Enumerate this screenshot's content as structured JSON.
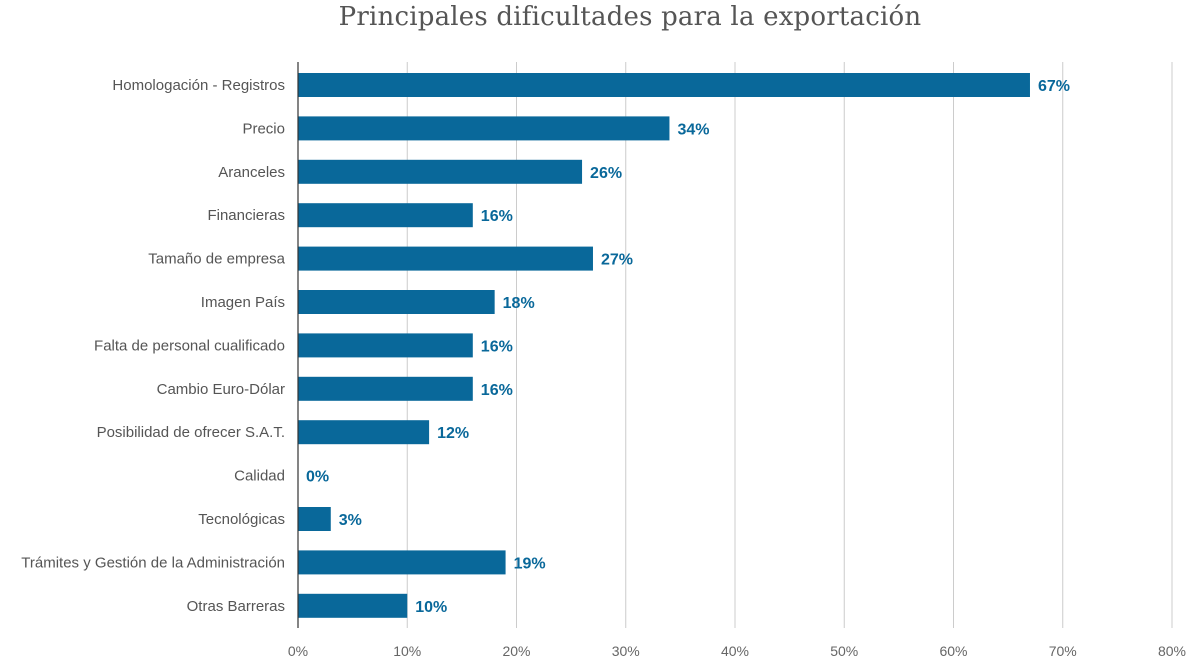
{
  "chart_data": {
    "type": "bar",
    "orientation": "horizontal",
    "title": "Principales dificultades para la exportación",
    "categories": [
      "Homologación - Registros",
      "Precio",
      "Aranceles",
      "Financieras",
      "Tamaño de empresa",
      "Imagen País",
      "Falta de personal cualificado",
      "Cambio Euro-Dólar",
      "Posibilidad de ofrecer S.A.T.",
      "Calidad",
      "Tecnológicas",
      "Trámites y Gestión de la Administración",
      "Otras Barreras"
    ],
    "values": [
      67,
      34,
      26,
      16,
      27,
      18,
      16,
      16,
      12,
      0,
      3,
      19,
      10
    ],
    "value_labels": [
      "67%",
      "34%",
      "26%",
      "16%",
      "27%",
      "18%",
      "16%",
      "16%",
      "12%",
      "0%",
      "3%",
      "19%",
      "10%"
    ],
    "xlim": [
      0,
      80
    ],
    "xticks": [
      0,
      10,
      20,
      30,
      40,
      50,
      60,
      70,
      80
    ],
    "xtick_labels": [
      "0%",
      "10%",
      "20%",
      "30%",
      "40%",
      "50%",
      "60%",
      "70%",
      "80%"
    ],
    "grid": true,
    "legend": "none",
    "bar_color": "#09689a",
    "label_color": "#09689a"
  }
}
